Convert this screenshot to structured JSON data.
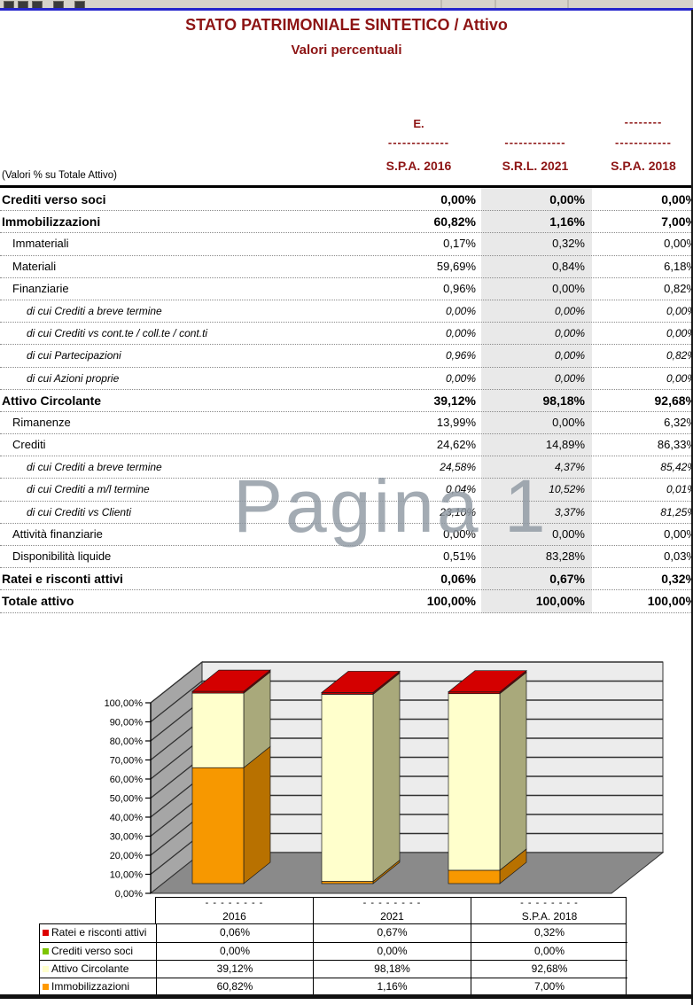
{
  "title": "STATO PATRIMONIALE SINTETICO / Attivo",
  "subtitle": "Valori percentuali",
  "watermark": "Pagina 1",
  "table": {
    "corner_label": "(Valori % su Totale Attivo)",
    "columns": [
      {
        "line1": "E.",
        "masked": "-------------",
        "line3": "S.P.A. 2016"
      },
      {
        "line1": "",
        "masked": "-------------",
        "line3": "S.R.L. 2021"
      },
      {
        "line1": "--------",
        "masked": "------------",
        "line3": "S.P.A. 2018"
      }
    ],
    "rows": [
      {
        "label": "Crediti verso soci",
        "style": "bold",
        "values": [
          "0,00%",
          "0,00%",
          "0,00%"
        ]
      },
      {
        "label": "Immobilizzazioni",
        "style": "bold",
        "values": [
          "60,82%",
          "1,16%",
          "7,00%"
        ]
      },
      {
        "label": "Immateriali",
        "style": "normal",
        "values": [
          "0,17%",
          "0,32%",
          "0,00%"
        ]
      },
      {
        "label": "Materiali",
        "style": "normal",
        "values": [
          "59,69%",
          "0,84%",
          "6,18%"
        ]
      },
      {
        "label": "Finanziarie",
        "style": "normal",
        "values": [
          "0,96%",
          "0,00%",
          "0,82%"
        ]
      },
      {
        "label": "di cui Crediti a breve termine",
        "style": "dicui",
        "values": [
          "0,00%",
          "0,00%",
          "0,00%"
        ]
      },
      {
        "label": "di cui  Crediti vs cont.te / coll.te / cont.ti",
        "style": "dicui",
        "values": [
          "0,00%",
          "0,00%",
          "0,00%"
        ]
      },
      {
        "label": "di cui  Partecipazioni",
        "style": "dicui",
        "values": [
          "0,96%",
          "0,00%",
          "0,82%"
        ]
      },
      {
        "label": "di cui  Azioni proprie",
        "style": "dicui",
        "values": [
          "0,00%",
          "0,00%",
          "0,00%"
        ]
      },
      {
        "label": "Attivo Circolante",
        "style": "bold",
        "values": [
          "39,12%",
          "98,18%",
          "92,68%"
        ]
      },
      {
        "label": "Rimanenze",
        "style": "normal",
        "values": [
          "13,99%",
          "0,00%",
          "6,32%"
        ]
      },
      {
        "label": "Crediti",
        "style": "normal",
        "values": [
          "24,62%",
          "14,89%",
          "86,33%"
        ]
      },
      {
        "label": "di cui Crediti a breve termine",
        "style": "dicui",
        "values": [
          "24,58%",
          "4,37%",
          "85,42%"
        ]
      },
      {
        "label": "di cui Crediti a m/l termine",
        "style": "dicui",
        "values": [
          "0,04%",
          "10,52%",
          "0,01%"
        ]
      },
      {
        "label": "di cui  Crediti vs Clienti",
        "style": "dicui",
        "values": [
          "23,10%",
          "3,37%",
          "81,25%"
        ]
      },
      {
        "label": "Attività finanziarie",
        "style": "normal",
        "values": [
          "0,00%",
          "0,00%",
          "0,00%"
        ]
      },
      {
        "label": "Disponibilità liquide",
        "style": "normal",
        "values": [
          "0,51%",
          "83,28%",
          "0,03%"
        ]
      },
      {
        "label": "Ratei e risconti attivi",
        "style": "bold",
        "values": [
          "0,06%",
          "0,67%",
          "0,32%"
        ]
      },
      {
        "label": "Totale attivo",
        "style": "bold",
        "values": [
          "100,00%",
          "100,00%",
          "100,00%"
        ]
      }
    ]
  },
  "chart_data": {
    "type": "bar",
    "subtype": "3d-stacked-column",
    "categories": [
      "2016",
      "2021",
      "S.P.A. 2018"
    ],
    "category_masked_names": [
      "- - - - - - - -",
      "- - - - - - - -",
      "- - - - - - - -"
    ],
    "series": [
      {
        "name": "Immobilizzazioni",
        "values": [
          60.82,
          1.16,
          7.0
        ],
        "color_front": "#F79800",
        "color_side": "#B87100"
      },
      {
        "name": "Attivo Circolante",
        "values": [
          39.12,
          98.18,
          92.68
        ],
        "color_front": "#FFFFCC",
        "color_side": "#A9A97B"
      },
      {
        "name": "Crediti verso soci",
        "values": [
          0.0,
          0.0,
          0.0
        ],
        "color_front": "#7DC400",
        "color_side": "#5E9400"
      },
      {
        "name": "Ratei e risconti attivi",
        "values": [
          0.06,
          0.67,
          0.32
        ],
        "color_front": "#C00000",
        "color_side": "#840000",
        "color_top": "#D40000"
      }
    ],
    "yticks": [
      "100,00%",
      "90,00%",
      "80,00%",
      "70,00%",
      "60,00%",
      "50,00%",
      "40,00%",
      "30,00%",
      "20,00%",
      "10,00%",
      "0,00%"
    ],
    "ylim": [
      0,
      100
    ],
    "grid": true,
    "legend_position": "bottom-table",
    "wall_color": "#A6A6A6",
    "back_wall_color": "#ECECEC",
    "floor_color": "#8A8A8A"
  },
  "legend_table": {
    "rows": [
      {
        "label": "Ratei e risconti attivi",
        "marker": "#DD0000",
        "values": [
          "0,06%",
          "0,67%",
          "0,32%"
        ]
      },
      {
        "label": "Crediti verso soci",
        "marker": "#7DC400",
        "values": [
          "0,00%",
          "0,00%",
          "0,00%"
        ]
      },
      {
        "label": "Attivo Circolante",
        "marker": "#FFFFCC",
        "values": [
          "39,12%",
          "98,18%",
          "92,68%"
        ]
      },
      {
        "label": "Immobilizzazioni",
        "marker": "#FF9900",
        "values": [
          "60,82%",
          "1,16%",
          "7,00%"
        ]
      }
    ]
  }
}
